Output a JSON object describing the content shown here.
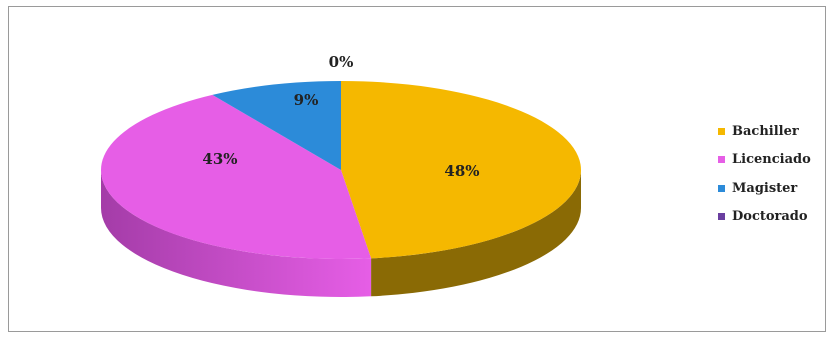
{
  "chart_data": {
    "type": "pie",
    "style": "3d",
    "title": "",
    "categories": [
      "Bachiller",
      "Licenciado",
      "Magister",
      "Doctorado"
    ],
    "values": [
      48,
      43,
      9,
      0
    ],
    "unit": "%",
    "data_labels": [
      "48%",
      "43%",
      "9%",
      "0%"
    ],
    "colors": [
      "#F5B800",
      "#E65EE6",
      "#2C8BD9",
      "#6A3FA0"
    ],
    "side_colors": [
      "#8A6A05",
      "#A43CA8",
      "#1A5C93",
      "#3E2466"
    ],
    "legend_position": "right"
  }
}
